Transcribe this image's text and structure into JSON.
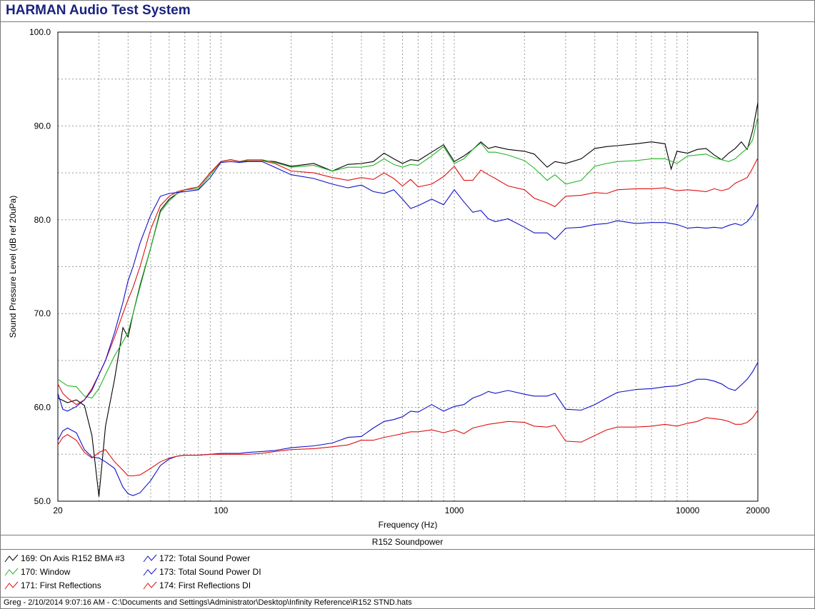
{
  "window": {
    "title": "HARMAN Audio Test System"
  },
  "subtitle_bar": "R152 Soundpower",
  "footer": "Greg - 2/10/2014 9:07:16 AM - C:\\Documents and Settings\\Administrator\\Desktop\\Infinity Reference\\R152 STND.hats",
  "legend": [
    {
      "label": "169: On Axis R152 BMA #3",
      "color": "#000000"
    },
    {
      "label": "170: Window",
      "color": "#22b422"
    },
    {
      "label": "171: First Reflections",
      "color": "#e01010"
    },
    {
      "label": "172: Total Sound Power",
      "color": "#1010c8"
    },
    {
      "label": "173: Total Sound Power DI",
      "color": "#1010c8"
    },
    {
      "label": "174: First Reflections DI",
      "color": "#e01010"
    }
  ],
  "chart_data": {
    "type": "line",
    "title": "",
    "xlabel": "Frequency (Hz)",
    "ylabel": "Sound Pressure Level (dB ref 20uPa)",
    "x_scale": "log",
    "xlim": [
      20,
      20000
    ],
    "ylim": [
      50,
      100
    ],
    "x_ticks": [
      "20",
      "100",
      "1000",
      "10000",
      "20000"
    ],
    "y_ticks": [
      "50.0",
      "60.0",
      "70.0",
      "80.0",
      "90.0",
      "100.0"
    ],
    "grid": true,
    "series": [
      {
        "name": "169: On Axis R152 BMA #3",
        "color": "#000000",
        "x": [
          20,
          22,
          24,
          26,
          28,
          30,
          32,
          35,
          38,
          40,
          42,
          45,
          50,
          55,
          60,
          65,
          70,
          80,
          90,
          100,
          110,
          120,
          130,
          150,
          170,
          200,
          250,
          300,
          350,
          400,
          450,
          500,
          550,
          600,
          650,
          700,
          800,
          900,
          1000,
          1100,
          1200,
          1300,
          1400,
          1500,
          1700,
          2000,
          2200,
          2500,
          2700,
          3000,
          3500,
          4000,
          4500,
          5000,
          6000,
          7000,
          8000,
          8500,
          9000,
          10000,
          11000,
          12000,
          13000,
          14000,
          15000,
          16000,
          17000,
          18000,
          19000,
          20000
        ],
        "y": [
          61,
          60.5,
          60.8,
          60.2,
          57,
          50.5,
          58,
          63,
          68.5,
          67.5,
          70,
          73,
          77,
          81,
          82.2,
          82.8,
          83.2,
          83.5,
          85,
          86.2,
          86.4,
          86.2,
          86.3,
          86.3,
          86.2,
          85.7,
          86,
          85.2,
          85.9,
          86,
          86.2,
          87.1,
          86.5,
          86,
          86.4,
          86.3,
          87.2,
          88,
          86.2,
          86.8,
          87.5,
          88.3,
          87.6,
          87.8,
          87.5,
          87.3,
          87,
          85.6,
          86.2,
          86,
          86.5,
          87.6,
          87.8,
          87.9,
          88.1,
          88.3,
          88.1,
          85.4,
          87.3,
          87.1,
          87.5,
          87.6,
          86.9,
          86.4,
          87.1,
          87.6,
          88.3,
          87.5,
          89.5,
          92.5
        ]
      },
      {
        "name": "170: Window",
        "color": "#22b422",
        "x": [
          20,
          22,
          24,
          26,
          28,
          30,
          32,
          35,
          38,
          40,
          42,
          45,
          50,
          55,
          60,
          65,
          70,
          80,
          90,
          100,
          110,
          120,
          130,
          150,
          170,
          200,
          250,
          300,
          350,
          400,
          450,
          500,
          550,
          600,
          650,
          700,
          800,
          900,
          1000,
          1100,
          1200,
          1300,
          1400,
          1500,
          1700,
          2000,
          2200,
          2500,
          2700,
          3000,
          3500,
          4000,
          4500,
          5000,
          6000,
          7000,
          8000,
          9000,
          10000,
          11000,
          12000,
          13000,
          14000,
          15000,
          16000,
          17000,
          18000,
          19000,
          20000
        ],
        "y": [
          63,
          62.3,
          62.2,
          61.2,
          61,
          62,
          63.5,
          65.5,
          67,
          68,
          70,
          72.8,
          77,
          80.8,
          82,
          82.8,
          83.2,
          83.3,
          84.8,
          86.2,
          86.4,
          86.2,
          86.4,
          86.4,
          86.1,
          85.6,
          85.8,
          85.2,
          85.6,
          85.6,
          85.8,
          86.5,
          85.9,
          85.6,
          85.9,
          85.8,
          86.8,
          87.8,
          86,
          86.5,
          87.5,
          88.2,
          87.2,
          87.2,
          86.9,
          86.3,
          85.5,
          84.2,
          84.8,
          83.8,
          84.2,
          85.7,
          86,
          86.2,
          86.3,
          86.5,
          86.5,
          86,
          86.8,
          86.9,
          87,
          86.6,
          86.4,
          86.2,
          86.5,
          87.1,
          87.6,
          88.5,
          91
        ]
      },
      {
        "name": "171: First Reflections",
        "color": "#e01010",
        "x": [
          20,
          21,
          22,
          24,
          26,
          28,
          30,
          32,
          35,
          38,
          40,
          42,
          45,
          50,
          55,
          60,
          65,
          70,
          80,
          90,
          100,
          110,
          120,
          130,
          150,
          170,
          200,
          250,
          300,
          350,
          400,
          450,
          500,
          550,
          600,
          650,
          700,
          800,
          900,
          1000,
          1100,
          1200,
          1300,
          1400,
          1500,
          1700,
          2000,
          2200,
          2500,
          2700,
          3000,
          3500,
          4000,
          4500,
          5000,
          6000,
          7000,
          8000,
          9000,
          10000,
          11000,
          12000,
          13000,
          14000,
          15000,
          16000,
          17000,
          18000,
          19000,
          20000
        ],
        "y": [
          62.5,
          61.5,
          61,
          60.3,
          60.8,
          62,
          63.5,
          65,
          67.5,
          70,
          71.5,
          72.8,
          75,
          79,
          81.5,
          82.5,
          83,
          83.2,
          83.5,
          85,
          86.2,
          86.4,
          86.2,
          86.3,
          86.3,
          86,
          85.2,
          85,
          84.5,
          84.2,
          84.5,
          84.3,
          85,
          84.4,
          83.6,
          84.3,
          83.5,
          83.8,
          84.6,
          85.7,
          84.2,
          84.2,
          85.3,
          84.8,
          84.4,
          83.6,
          83.2,
          82.3,
          81.8,
          81.4,
          82.5,
          82.6,
          82.9,
          82.8,
          83.2,
          83.3,
          83.3,
          83.4,
          83.1,
          83.2,
          83.1,
          83,
          83.3,
          83.1,
          83.3,
          83.9,
          84.2,
          84.5,
          85.5,
          86.6
        ]
      },
      {
        "name": "172: Total Sound Power",
        "color": "#1010c8",
        "x": [
          20,
          21,
          22,
          24,
          26,
          28,
          30,
          32,
          35,
          38,
          40,
          42,
          45,
          50,
          55,
          60,
          65,
          70,
          80,
          90,
          100,
          110,
          120,
          130,
          150,
          170,
          200,
          250,
          300,
          350,
          400,
          450,
          500,
          550,
          600,
          650,
          700,
          800,
          900,
          1000,
          1100,
          1200,
          1300,
          1400,
          1500,
          1700,
          2000,
          2200,
          2500,
          2700,
          3000,
          3500,
          4000,
          4500,
          5000,
          6000,
          7000,
          8000,
          9000,
          10000,
          11000,
          12000,
          13000,
          14000,
          15000,
          16000,
          17000,
          18000,
          19000,
          20000
        ],
        "y": [
          61.5,
          59.8,
          59.6,
          60.1,
          60.8,
          61.8,
          63.5,
          65,
          68,
          71.2,
          73.5,
          75,
          77.5,
          80.5,
          82.5,
          82.8,
          82.9,
          83,
          83.2,
          84.5,
          86.1,
          86.2,
          86.1,
          86.2,
          86.2,
          85.6,
          84.8,
          84.4,
          83.8,
          83.4,
          83.7,
          83,
          82.8,
          83.2,
          82.2,
          81.2,
          81.5,
          82.2,
          81.6,
          83.2,
          81.9,
          80.8,
          81,
          80.1,
          79.8,
          80.1,
          79.2,
          78.6,
          78.6,
          77.9,
          79.1,
          79.2,
          79.5,
          79.6,
          79.9,
          79.6,
          79.7,
          79.7,
          79.5,
          79.1,
          79.2,
          79.1,
          79.2,
          79.1,
          79.4,
          79.6,
          79.4,
          79.8,
          80.5,
          81.7
        ]
      },
      {
        "name": "173: Total Sound Power DI",
        "color": "#1010c8",
        "x": [
          20,
          21,
          22,
          24,
          26,
          28,
          30,
          32,
          35,
          38,
          40,
          42,
          45,
          50,
          55,
          60,
          65,
          70,
          80,
          90,
          100,
          110,
          120,
          130,
          150,
          170,
          200,
          250,
          300,
          350,
          400,
          450,
          500,
          550,
          600,
          650,
          700,
          800,
          900,
          1000,
          1100,
          1200,
          1300,
          1400,
          1500,
          1700,
          2000,
          2200,
          2500,
          2700,
          3000,
          3500,
          4000,
          4500,
          5000,
          6000,
          7000,
          8000,
          9000,
          10000,
          11000,
          12000,
          13000,
          14000,
          15000,
          16000,
          17000,
          18000,
          19000,
          20000
        ],
        "y": [
          56.5,
          57.5,
          57.8,
          57.3,
          55.5,
          54.7,
          54.6,
          54.2,
          53.5,
          51.5,
          50.8,
          50.6,
          50.9,
          52.2,
          53.8,
          54.5,
          54.8,
          54.9,
          54.9,
          55.0,
          55.1,
          55.1,
          55.1,
          55.2,
          55.3,
          55.4,
          55.7,
          55.9,
          56.2,
          56.8,
          56.9,
          57.8,
          58.5,
          58.7,
          59.0,
          59.6,
          59.5,
          60.3,
          59.6,
          60.1,
          60.3,
          61.0,
          61.3,
          61.7,
          61.5,
          61.8,
          61.4,
          61.2,
          61.2,
          61.5,
          59.8,
          59.7,
          60.3,
          61.0,
          61.6,
          61.9,
          62.0,
          62.2,
          62.3,
          62.6,
          63.0,
          63.0,
          62.8,
          62.5,
          62.0,
          61.8,
          62.4,
          63.0,
          63.8,
          64.8
        ]
      },
      {
        "name": "174: First Reflections DI",
        "color": "#e01010",
        "x": [
          20,
          21,
          22,
          24,
          26,
          28,
          30,
          32,
          35,
          38,
          40,
          42,
          45,
          50,
          55,
          60,
          65,
          70,
          80,
          90,
          100,
          110,
          120,
          130,
          150,
          170,
          200,
          250,
          300,
          350,
          400,
          450,
          500,
          550,
          600,
          650,
          700,
          800,
          900,
          1000,
          1100,
          1200,
          1300,
          1400,
          1500,
          1700,
          2000,
          2200,
          2500,
          2700,
          3000,
          3500,
          4000,
          4500,
          5000,
          6000,
          7000,
          8000,
          9000,
          10000,
          11000,
          12000,
          13000,
          14000,
          15000,
          16000,
          17000,
          18000,
          19000,
          20000
        ],
        "y": [
          56,
          56.8,
          57.1,
          56.5,
          55.2,
          54.6,
          55.2,
          55.5,
          54.2,
          53.3,
          52.7,
          52.7,
          52.8,
          53.5,
          54.2,
          54.6,
          54.8,
          54.9,
          54.9,
          55.0,
          55.0,
          55.0,
          55.0,
          55.0,
          55.1,
          55.3,
          55.5,
          55.6,
          55.8,
          56.0,
          56.5,
          56.5,
          56.8,
          57.0,
          57.2,
          57.4,
          57.4,
          57.6,
          57.3,
          57.6,
          57.2,
          57.8,
          58.0,
          58.2,
          58.3,
          58.5,
          58.4,
          58.0,
          57.9,
          58.1,
          56.4,
          56.3,
          57.0,
          57.6,
          57.9,
          57.9,
          58.0,
          58.2,
          58.0,
          58.3,
          58.5,
          58.9,
          58.8,
          58.7,
          58.5,
          58.2,
          58.2,
          58.4,
          58.9,
          59.7
        ]
      }
    ]
  }
}
